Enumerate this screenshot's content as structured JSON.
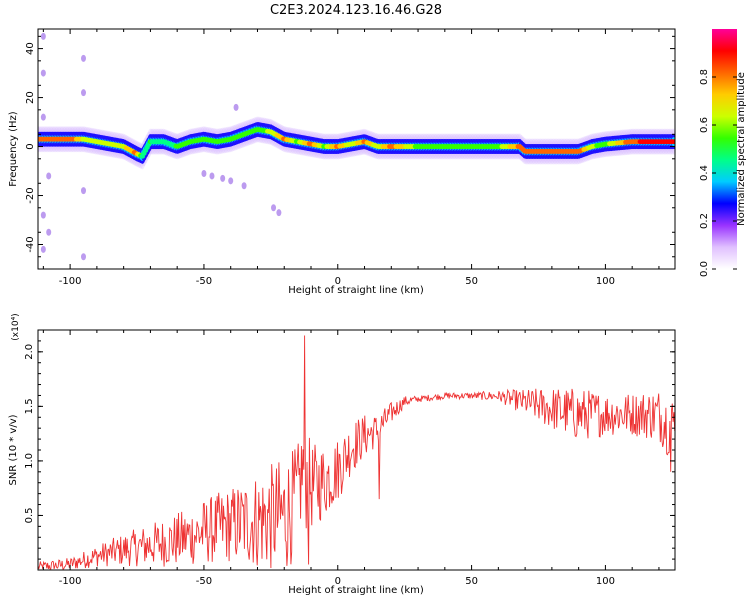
{
  "figure_title": "C2E3.2024.123.16.46.G28",
  "chart_data": [
    {
      "type": "heatmap",
      "xlabel": "Height of straight line (km)",
      "ylabel": "Frequency (Hz)",
      "xlim": [
        -112,
        126
      ],
      "ylim": [
        -50,
        48
      ],
      "x_ticks": [
        -100,
        -50,
        0,
        50,
        100
      ],
      "y_ticks": [
        -40,
        -20,
        0,
        20,
        40
      ],
      "colorbar": {
        "label": "Normalized spectral amplitude",
        "range": [
          0,
          1
        ],
        "ticks": [
          0.0,
          0.2,
          0.4,
          0.6,
          0.8
        ],
        "colors": [
          "#ffffff",
          "#e0c0ff",
          "#9933ff",
          "#0000ff",
          "#00ccff",
          "#00ff88",
          "#33ff00",
          "#ccff00",
          "#ffcc00",
          "#ff6600",
          "#ff0000",
          "#ff0099"
        ]
      },
      "ridge": {
        "x": [
          -112,
          -100,
          -95,
          -90,
          -85,
          -80,
          -75,
          -73,
          -70,
          -65,
          -60,
          -55,
          -50,
          -45,
          -40,
          -35,
          -30,
          -25,
          -20,
          -15,
          -10,
          -5,
          0,
          5,
          10,
          15,
          20,
          30,
          40,
          50,
          60,
          68,
          70,
          75,
          80,
          85,
          90,
          95,
          100,
          110,
          126
        ],
        "frequency": [
          3,
          3,
          3,
          2,
          1,
          0,
          -3,
          -4,
          2,
          2,
          0,
          2,
          3,
          2,
          3,
          5,
          7,
          6,
          3,
          2,
          1,
          0,
          0,
          1,
          2,
          0,
          0,
          0,
          0,
          0,
          0,
          0,
          -2,
          -2,
          -2,
          -2,
          -2,
          0,
          1,
          2,
          2
        ],
        "amplitude": [
          0.9,
          0.9,
          0.7,
          0.65,
          0.65,
          0.7,
          0.85,
          0.5,
          0.55,
          0.5,
          0.55,
          0.55,
          0.55,
          0.55,
          0.6,
          0.6,
          0.6,
          0.65,
          0.85,
          0.6,
          0.85,
          0.6,
          0.85,
          0.65,
          0.85,
          0.65,
          0.85,
          0.6,
          0.6,
          0.55,
          0.6,
          0.85,
          0.9,
          0.9,
          0.9,
          0.9,
          0.9,
          0.65,
          0.6,
          0.9,
          0.95
        ]
      },
      "scattered_points": [
        {
          "x": -110,
          "frequency": 45
        },
        {
          "x": -110,
          "frequency": 30
        },
        {
          "x": -110,
          "frequency": 12
        },
        {
          "x": -108,
          "frequency": -12
        },
        {
          "x": -110,
          "frequency": -28
        },
        {
          "x": -108,
          "frequency": -35
        },
        {
          "x": -110,
          "frequency": -42
        },
        {
          "x": -95,
          "frequency": 36
        },
        {
          "x": -95,
          "frequency": 22
        },
        {
          "x": -95,
          "frequency": -18
        },
        {
          "x": -95,
          "frequency": -45
        },
        {
          "x": -50,
          "frequency": -11
        },
        {
          "x": -47,
          "frequency": -12
        },
        {
          "x": -43,
          "frequency": -13
        },
        {
          "x": -40,
          "frequency": -14
        },
        {
          "x": -35,
          "frequency": -16
        },
        {
          "x": -24,
          "frequency": -25
        },
        {
          "x": -22,
          "frequency": -27
        },
        {
          "x": -38,
          "frequency": 16
        }
      ]
    },
    {
      "type": "line",
      "xlabel": "Height of straight line (km)",
      "ylabel": "SNR (10 * v/v)",
      "y_multiplier": "(x10⁴)",
      "xlim": [
        -112,
        126
      ],
      "ylim": [
        0,
        2.2
      ],
      "x_ticks": [
        -100,
        -50,
        0,
        50,
        100
      ],
      "y_ticks": [
        0.5,
        1.0,
        1.5,
        2.0
      ],
      "color": "#ee3333",
      "envelope": {
        "x": [
          -112,
          -100,
          -90,
          -80,
          -70,
          -60,
          -50,
          -40,
          -30,
          -20,
          -15,
          -13,
          -12,
          -10,
          -5,
          0,
          5,
          10,
          15,
          20,
          25,
          30,
          40,
          50,
          60,
          70,
          80,
          90,
          100,
          110,
          120,
          124,
          126
        ],
        "mean": [
          0.03,
          0.06,
          0.14,
          0.2,
          0.25,
          0.3,
          0.38,
          0.45,
          0.5,
          0.55,
          0.7,
          1.0,
          0.9,
          0.8,
          0.85,
          0.95,
          1.15,
          1.25,
          1.3,
          1.45,
          1.55,
          1.57,
          1.6,
          1.6,
          1.6,
          1.55,
          1.5,
          1.45,
          1.45,
          1.45,
          1.45,
          1.35,
          1.4
        ],
        "amplitude": [
          0.05,
          0.06,
          0.1,
          0.15,
          0.2,
          0.25,
          0.3,
          0.35,
          0.45,
          0.55,
          0.5,
          0.45,
          0.5,
          0.4,
          0.35,
          0.3,
          0.25,
          0.2,
          0.15,
          0.1,
          0.05,
          0.03,
          0.03,
          0.03,
          0.05,
          0.12,
          0.2,
          0.25,
          0.2,
          0.2,
          0.25,
          0.3,
          0.2
        ]
      },
      "spikes": [
        {
          "x": -12.5,
          "y": 2.15
        },
        {
          "x": -11.0,
          "y": 0.05
        },
        {
          "x": 15.5,
          "y": 0.65
        },
        {
          "x": 124.5,
          "y": 0.9
        }
      ]
    }
  ]
}
